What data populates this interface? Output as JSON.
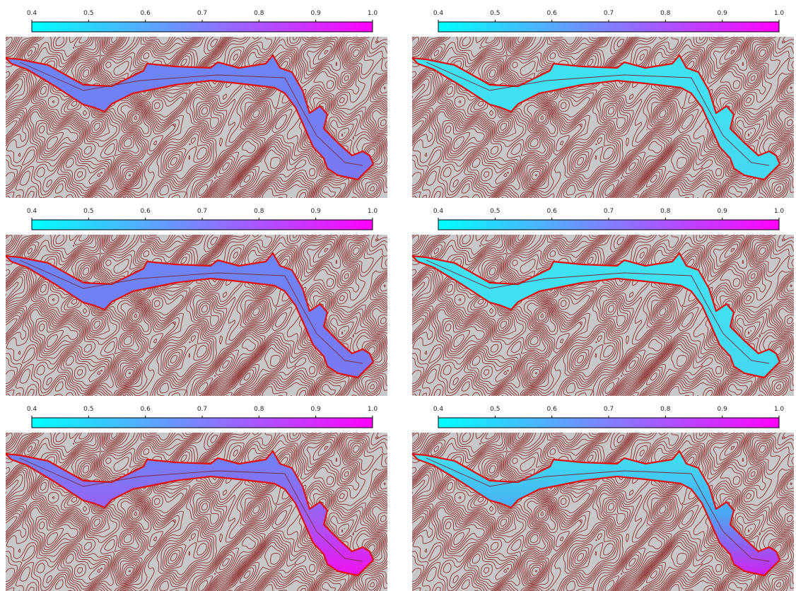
{
  "panels": [
    {
      "colorbar": {
        "lim": [
          0.4,
          1
        ],
        "colors": [
          "#00ffff",
          "#ff00ff"
        ],
        "ticks": [
          0.4,
          0.5,
          0.6,
          0.7,
          0.8,
          0.9,
          {
            "value": 1,
            "label": "1.0"
          }
        ]
      }
    },
    {
      "colorbar": {
        "lim": [
          0.4,
          1
        ],
        "colors": [
          "#00ffff",
          "#ff00ff"
        ],
        "ticks": [
          0.4,
          0.5,
          0.6,
          0.7,
          0.8,
          0.9,
          {
            "value": 1,
            "label": "1.0"
          }
        ]
      }
    },
    {
      "colorbar": {
        "lim": [
          0.4,
          1
        ],
        "colors": [
          "#00ffff",
          "#ff00ff"
        ],
        "ticks": [
          0.4,
          0.5,
          0.6,
          0.7,
          0.8,
          0.9,
          {
            "value": 1,
            "label": "1.0"
          }
        ]
      }
    },
    {
      "colorbar": {
        "lim": [
          0.4,
          1
        ],
        "colors": [
          "#00ffff",
          "#ff00ff"
        ],
        "ticks": [
          0.4,
          0.5,
          0.6,
          0.7,
          0.8,
          0.9,
          {
            "value": 1,
            "label": "1.0"
          }
        ]
      }
    },
    {
      "colorbar": {
        "lim": [
          0.4,
          1
        ],
        "colors": [
          "#00ffff",
          "#ff00ff"
        ],
        "ticks": [
          0.4,
          0.5,
          0.6,
          0.7,
          0.8,
          0.9,
          {
            "value": 1,
            "label": "1.0"
          }
        ]
      }
    },
    {
      "colorbar": {
        "lim": [
          0.4,
          1
        ],
        "colors": [
          "#00ffff",
          "#ff00ff"
        ],
        "ticks": [
          0.4,
          0.5,
          0.6,
          0.7,
          0.8,
          0.9,
          {
            "value": 1,
            "label": "1.0"
          }
        ]
      }
    }
  ]
}
